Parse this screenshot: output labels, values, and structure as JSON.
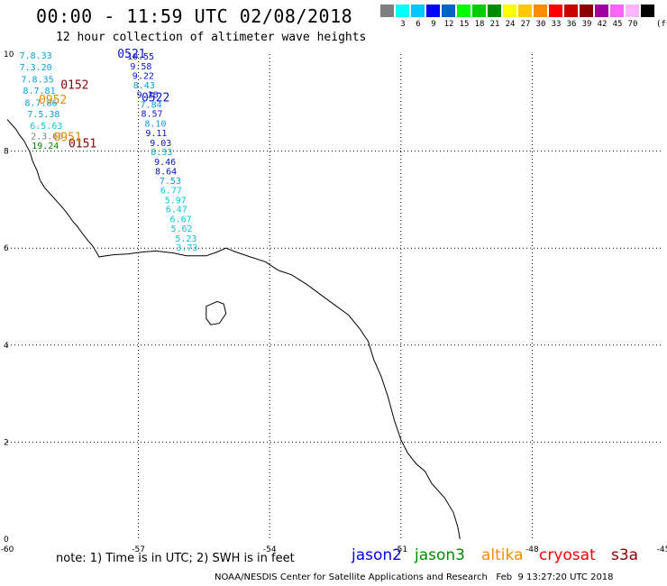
{
  "header": {
    "title": "00:00 - 11:59 UTC 02/08/2018",
    "subtitle": "12 hour collection of altimeter wave heights"
  },
  "legend": {
    "swatches": [
      {
        "color": "#7f7f7f",
        "label": ""
      },
      {
        "color": "#00ffff",
        "label": "3"
      },
      {
        "color": "#00c8ff",
        "label": "6"
      },
      {
        "color": "#0000ff",
        "label": "9"
      },
      {
        "color": "#0064c8",
        "label": "12"
      },
      {
        "color": "#00ff00",
        "label": "15"
      },
      {
        "color": "#00cc00",
        "label": "18"
      },
      {
        "color": "#008c00",
        "label": "21"
      },
      {
        "color": "#ffff00",
        "label": "24"
      },
      {
        "color": "#ffc800",
        "label": "27"
      },
      {
        "color": "#ff8c00",
        "label": "30"
      },
      {
        "color": "#ff0000",
        "label": "33"
      },
      {
        "color": "#c80000",
        "label": "36"
      },
      {
        "color": "#8b0000",
        "label": "39"
      },
      {
        "color": "#a000a0",
        "label": "42"
      },
      {
        "color": "#ff64ff",
        "label": "45"
      },
      {
        "color": "#ffb4ff",
        "label": "70"
      },
      {
        "color": "#000000",
        "label": ""
      }
    ],
    "unit": "(ft)"
  },
  "axes": {
    "lon_ticks": [
      "-60",
      "-57",
      "-54",
      "-51",
      "-48",
      "-45"
    ],
    "lat_ticks": [
      "0",
      "2",
      "4",
      "6",
      "8",
      "10"
    ]
  },
  "tracks": {
    "jason2": {
      "color": "#0a14c8",
      "passes": [
        {
          "time": "0521",
          "lon": -57.48,
          "lat": 10.0
        },
        {
          "time": "0522",
          "lon": -56.93,
          "lat": 9.1
        }
      ],
      "points": [
        {
          "value": "10.55",
          "lon": -57.26,
          "lat": 9.96,
          "color": "#0a14c8"
        },
        {
          "value": "9.58",
          "lon": -57.19,
          "lat": 9.76,
          "color": "#0a14c8"
        },
        {
          "value": "9.22",
          "lon": -57.14,
          "lat": 9.56,
          "color": "#0a14c8"
        },
        {
          "value": "8.43",
          "lon": -57.12,
          "lat": 9.37,
          "color": "#0aa0dc"
        },
        {
          "value": "9.26",
          "lon": -57.04,
          "lat": 9.17,
          "color": "#0a14c8"
        },
        {
          "value": "7.84",
          "lon": -56.96,
          "lat": 8.97,
          "color": "#0aa0dc"
        },
        {
          "value": "8.57",
          "lon": -56.94,
          "lat": 8.78,
          "color": "#0a14c8"
        },
        {
          "value": "8.10",
          "lon": -56.86,
          "lat": 8.58,
          "color": "#0aa0dc"
        },
        {
          "value": "9.11",
          "lon": -56.84,
          "lat": 8.38,
          "color": "#0a14c8"
        },
        {
          "value": "9.03",
          "lon": -56.74,
          "lat": 8.18,
          "color": "#0a14c8"
        },
        {
          "value": "8.33",
          "lon": -56.72,
          "lat": 7.99,
          "color": "#0aa0dc"
        },
        {
          "value": "9.46",
          "lon": -56.64,
          "lat": 7.79,
          "color": "#0a14c8"
        },
        {
          "value": "8.64",
          "lon": -56.62,
          "lat": 7.59,
          "color": "#0a14c8"
        },
        {
          "value": "7.53",
          "lon": -56.52,
          "lat": 7.4,
          "color": "#0aa0dc"
        },
        {
          "value": "6.77",
          "lon": -56.5,
          "lat": 7.2,
          "color": "#00c8e6"
        },
        {
          "value": "5.97",
          "lon": -56.4,
          "lat": 7.0,
          "color": "#00c8e6"
        },
        {
          "value": "6.47",
          "lon": -56.38,
          "lat": 6.81,
          "color": "#00c8e6"
        },
        {
          "value": "6.67",
          "lon": -56.28,
          "lat": 6.61,
          "color": "#00c8e6"
        },
        {
          "value": "5.62",
          "lon": -56.26,
          "lat": 6.41,
          "color": "#00c8e6"
        },
        {
          "value": "5.23",
          "lon": -56.16,
          "lat": 6.21,
          "color": "#00c8e6"
        },
        {
          "value": "3.73",
          "lon": -56.14,
          "lat": 6.02,
          "color": "#00c8e6"
        }
      ]
    },
    "cryosat": {
      "passes": [
        {
          "time": "0152",
          "lon": -58.78,
          "lat": 9.36,
          "color": "#8b0000"
        },
        {
          "time": "0151",
          "lon": -58.6,
          "lat": 8.15,
          "color": "#8b0000"
        }
      ]
    },
    "altika": {
      "passes": [
        {
          "time": "0952",
          "lon": -59.28,
          "lat": 9.05,
          "color": "#e08c00"
        },
        {
          "time": "0951",
          "lon": -58.94,
          "lat": 8.28,
          "color": "#e08c00"
        }
      ]
    },
    "west_cluster": [
      {
        "value": "7.8.33",
        "lon": -59.72,
        "lat": 9.98,
        "color": "#0aa0dc"
      },
      {
        "value": "7.3.20",
        "lon": -59.72,
        "lat": 9.74,
        "color": "#0aa0dc"
      },
      {
        "value": "7.8.35",
        "lon": -59.68,
        "lat": 9.49,
        "color": "#0aa0dc"
      },
      {
        "value": "8.7.81",
        "lon": -59.64,
        "lat": 9.26,
        "color": "#0aa0dc"
      },
      {
        "value": "8.7.86",
        "lon": -59.6,
        "lat": 9.01,
        "color": "#0aa0dc"
      },
      {
        "value": "7.5.38",
        "lon": -59.54,
        "lat": 8.77,
        "color": "#0aa0dc"
      },
      {
        "value": "6.5.63",
        "lon": -59.48,
        "lat": 8.53,
        "color": "#00c8e6"
      },
      {
        "value": "2.3.60",
        "lon": -59.46,
        "lat": 8.32,
        "color": "#7f7f7f"
      },
      {
        "value": "19.24",
        "lon": -59.44,
        "lat": 8.12,
        "color": "#008c00"
      }
    ]
  },
  "note": "note: 1) Time is in UTC; 2) SWH is in feet",
  "satellites": [
    {
      "name": "jason2",
      "color": "#0000ff"
    },
    {
      "name": "jason3",
      "color": "#008c00"
    },
    {
      "name": "altika",
      "color": "#ff8c00"
    },
    {
      "name": "cryosat",
      "color": "#ff0000"
    },
    {
      "name": "s3a",
      "color": "#8b0000"
    }
  ],
  "footer": "NOAA/NESDIS Center for Satellite Applications and Research   Feb  9 13:27:20 UTC 2018"
}
